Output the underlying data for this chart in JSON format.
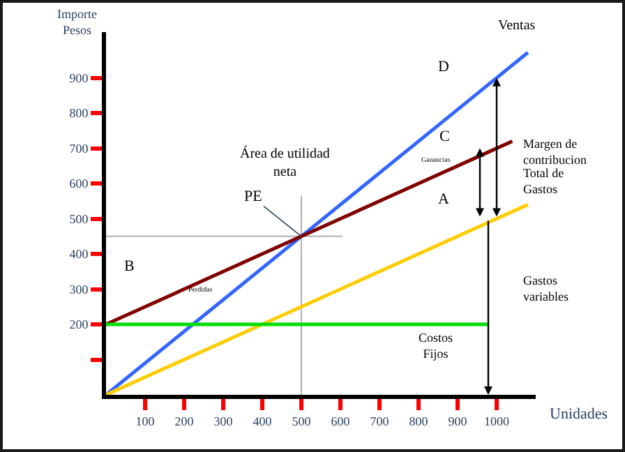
{
  "chart_data": {
    "type": "line",
    "xlabel": "Unidades",
    "ylabel": "Importe Pesos",
    "xlim": [
      0,
      1100
    ],
    "ylim": [
      0,
      1030
    ],
    "xticks": [
      100,
      200,
      300,
      400,
      500,
      600,
      700,
      800,
      900,
      1000
    ],
    "yticks": [
      {
        "value": 100,
        "label": null
      },
      200,
      300,
      400,
      500,
      600,
      700,
      800,
      900
    ],
    "grid": false,
    "marker": "none",
    "line_style": "solid",
    "series": [
      {
        "color": "#3366ff",
        "x": [
          0,
          500,
          1000,
          1080
        ],
        "values": [
          0,
          450,
          900,
          972
        ]
      },
      {
        "color": "#800000",
        "x": [
          0,
          500,
          1000,
          1040
        ],
        "values": [
          200,
          450,
          700,
          720
        ]
      },
      {
        "color": "#ffcc00",
        "x": [
          0,
          400,
          1000,
          1080
        ],
        "values": [
          0,
          200,
          500,
          540
        ]
      },
      {
        "color": "#00dd00",
        "x": [
          0,
          980
        ],
        "values": [
          200,
          200
        ]
      }
    ],
    "ref_lines": [
      {
        "axis": "y",
        "value": 450,
        "color": "#b0b0b0"
      },
      {
        "axis": "x",
        "value": 500,
        "color": "#b0b0b0"
      }
    ],
    "annotations": [
      "Ventas",
      "D",
      "C",
      "A",
      "B",
      "Margen de contribucion",
      "Total de Gastos",
      "Gastos variables",
      "Costos Fijos",
      "Área de utilidad neta",
      {
        "text": "PE",
        "x": 500,
        "y": 450
      },
      "Ganancias",
      "Perdidas"
    ]
  }
}
